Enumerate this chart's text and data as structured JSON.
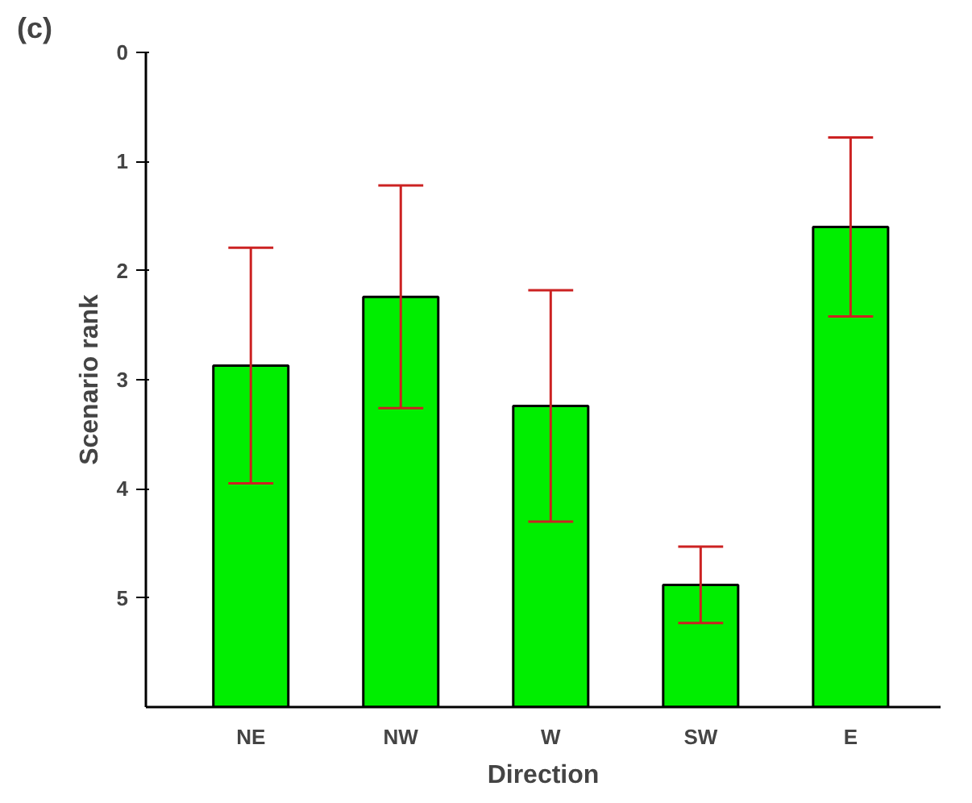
{
  "chart_data": {
    "type": "bar",
    "xlabel": "Direction",
    "ylabel": "Scenario rank",
    "annotations": [
      "(c)"
    ],
    "categories": [
      "NE",
      "NW",
      "W",
      "SW",
      "E"
    ],
    "base": [
      6,
      6,
      6,
      6,
      6
    ],
    "values": [
      -3.13,
      -3.76,
      -2.76,
      -1.12,
      -4.4
    ],
    "errors": [
      1.08,
      1.02,
      1.06,
      0.35,
      0.82
    ],
    "color": "#00ee00",
    "ylim": [
      6,
      0
    ],
    "yticks": [
      0,
      1,
      2,
      3,
      4,
      5
    ],
    "grid": false
  }
}
